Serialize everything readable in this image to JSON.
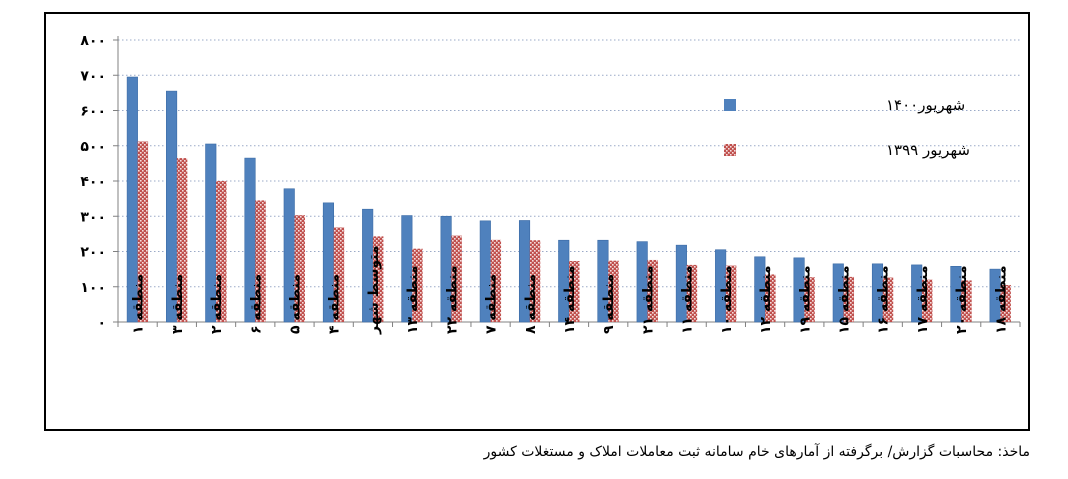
{
  "source_note": "ماخذ: محاسبات گزارش/ برگرفته از آمارهای خام سامانه ثبت معاملات املاک و مستغلات کشور",
  "chart_data": {
    "type": "bar",
    "title": "",
    "xlabel": "",
    "ylabel": "",
    "ylim": [
      0,
      800
    ],
    "yticks": [
      0,
      100,
      200,
      300,
      400,
      500,
      600,
      700,
      800
    ],
    "ytick_labels": [
      "۰",
      "۱۰۰",
      "۲۰۰",
      "۳۰۰",
      "۴۰۰",
      "۵۰۰",
      "۶۰۰",
      "۷۰۰",
      "۸۰۰"
    ],
    "grid": "horizontal-dotted",
    "legend_position": "right",
    "categories": [
      "منطقه ۱",
      "منطقه ۳",
      "منطقه ۲",
      "منطقه ۶",
      "منطقه ۵",
      "منطقه ۴",
      "متوسط شهر",
      "منطقه ۱۳",
      "منطقه ۲۲",
      "منطقه ۷",
      "منطقه ۸",
      "منطقه ۱۴",
      "منطقه ۹",
      "منطقه ۲۱",
      "منطقه ۱۱",
      "منطقه ۱۰",
      "منطقه ۱۲",
      "منطقه ۱۹",
      "منطقه ۱۵",
      "منطقه ۱۶",
      "منطقه ۱۷",
      "منطقه ۲۰",
      "منطقه ۱۸"
    ],
    "series": [
      {
        "name": "شهریور۱۴۰۰",
        "color": "#4F81BD",
        "pattern": "solid",
        "values": [
          695,
          655,
          505,
          465,
          378,
          338,
          320,
          302,
          300,
          287,
          288,
          232,
          232,
          228,
          218,
          205,
          185,
          182,
          165,
          165,
          162,
          158,
          150
        ]
      },
      {
        "name": "شهریور ۱۳۹۹",
        "color": "#C0504D",
        "pattern": "dotted",
        "values": [
          512,
          465,
          400,
          345,
          303,
          268,
          243,
          208,
          245,
          233,
          232,
          173,
          174,
          176,
          162,
          160,
          135,
          127,
          128,
          126,
          120,
          118,
          105
        ]
      }
    ]
  }
}
